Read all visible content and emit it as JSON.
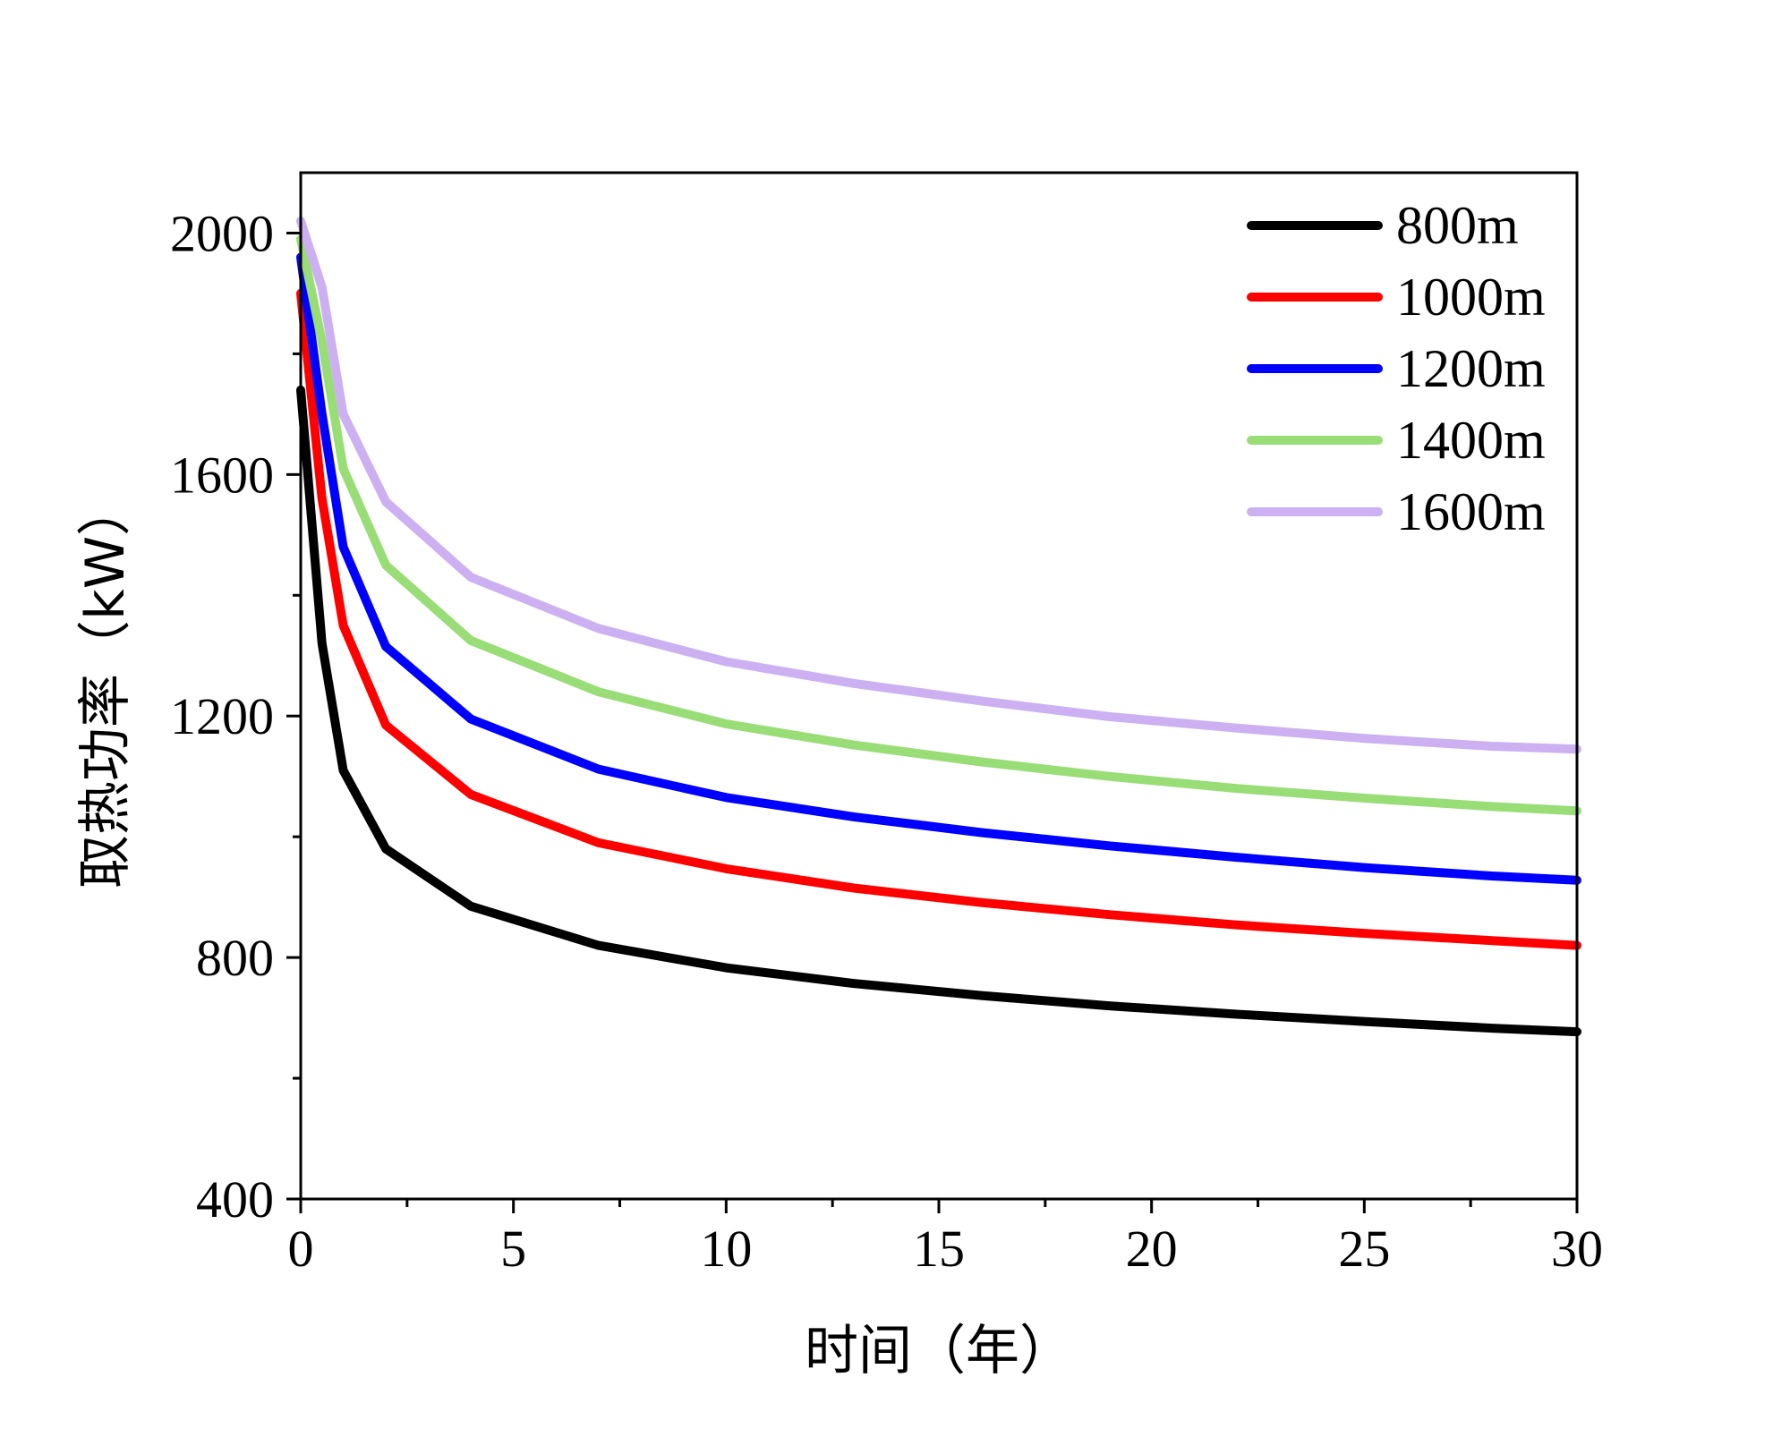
{
  "chart_data": {
    "type": "line",
    "title": "",
    "xlabel": "时间（年）",
    "ylabel": "取热功率（kW）",
    "xlim": [
      0,
      30
    ],
    "ylim": [
      400,
      2100
    ],
    "xticks": [
      0,
      5,
      10,
      15,
      20,
      25,
      30
    ],
    "xtick_labels": [
      "0",
      "5",
      "10",
      "15",
      "20",
      "25",
      "30"
    ],
    "yticks": [
      400,
      800,
      1200,
      1600,
      2000
    ],
    "ytick_labels": [
      "400",
      "800",
      "1200",
      "1600",
      "2000"
    ],
    "x_minor_step": 2.5,
    "y_minor_step": 200,
    "grid": false,
    "legend_position": "top-right",
    "x": [
      0,
      0.5,
      1,
      2,
      4,
      7,
      10,
      13,
      16,
      19,
      22,
      25,
      28,
      30
    ],
    "series": [
      {
        "name": "800m",
        "color": "#000000",
        "values": [
          1740,
          1320,
          1110,
          980,
          885,
          820,
          783,
          757,
          737,
          720,
          706,
          694,
          683,
          677
        ]
      },
      {
        "name": "1000m",
        "color": "#ff0000",
        "values": [
          1900,
          1560,
          1350,
          1185,
          1070,
          990,
          947,
          915,
          891,
          871,
          854,
          840,
          828,
          820
        ]
      },
      {
        "name": "1200m",
        "color": "#0000ff",
        "values": [
          1960,
          1700,
          1480,
          1315,
          1195,
          1112,
          1065,
          1033,
          1007,
          985,
          966,
          949,
          935,
          928
        ]
      },
      {
        "name": "1400m",
        "color": "#99dd77",
        "values": [
          1990,
          1820,
          1610,
          1450,
          1325,
          1240,
          1187,
          1152,
          1124,
          1100,
          1080,
          1064,
          1050,
          1043
        ]
      },
      {
        "name": "1600m",
        "color": "#ccb0f2",
        "values": [
          2020,
          1910,
          1700,
          1555,
          1430,
          1345,
          1290,
          1254,
          1225,
          1199,
          1180,
          1163,
          1150,
          1145
        ]
      }
    ]
  }
}
